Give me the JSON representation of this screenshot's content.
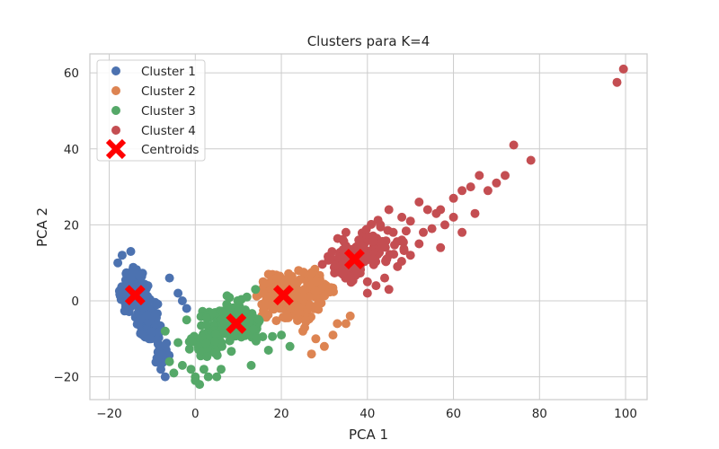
{
  "chart_data": {
    "type": "scatter",
    "title": "Clusters para K=4",
    "xlabel": "PCA 1",
    "ylabel": "PCA 2",
    "xlim": [
      -24.5,
      105
    ],
    "ylim": [
      -26,
      65
    ],
    "xticks": [
      -20,
      0,
      20,
      40,
      60,
      80,
      100
    ],
    "yticks": [
      -20,
      0,
      20,
      40,
      60
    ],
    "grid": true,
    "legend_position": "top-left",
    "series": [
      {
        "name": "Cluster 1",
        "color": "#4c72b0",
        "regions": [
          {
            "cx": -14,
            "cy": 2,
            "sx": 2.4,
            "sy": 3.5,
            "n": 160
          },
          {
            "cx": -11,
            "cy": -6,
            "sx": 2.0,
            "sy": 3.0,
            "n": 90
          },
          {
            "cx": -8,
            "cy": -13,
            "sx": 1.3,
            "sy": 2.6,
            "n": 30
          }
        ],
        "points": [
          [
            -18,
            10
          ],
          [
            -17,
            12
          ],
          [
            -15,
            13
          ],
          [
            -6,
            6
          ],
          [
            -4,
            2
          ],
          [
            -3,
            0
          ],
          [
            -2,
            -2
          ],
          [
            -8,
            -18
          ],
          [
            -7,
            -20
          ],
          [
            -11,
            4
          ],
          [
            -9,
            -1
          ]
        ]
      },
      {
        "name": "Cluster 2",
        "color": "#dd8452",
        "regions": [
          {
            "cx": 21,
            "cy": 1,
            "sx": 4.2,
            "sy": 3.6,
            "n": 230
          },
          {
            "cx": 28,
            "cy": 3,
            "sx": 3.0,
            "sy": 3.2,
            "n": 60
          }
        ],
        "points": [
          [
            25,
            -8
          ],
          [
            28,
            -10
          ],
          [
            30,
            -12
          ],
          [
            27,
            -14
          ],
          [
            33,
            -6
          ],
          [
            36,
            -4
          ],
          [
            35,
            -6
          ],
          [
            32,
            -9
          ],
          [
            17,
            7
          ],
          [
            19,
            6
          ],
          [
            24,
            8
          ]
        ]
      },
      {
        "name": "Cluster 3",
        "color": "#55a868",
        "regions": [
          {
            "cx": 9,
            "cy": -6,
            "sx": 4.0,
            "sy": 3.4,
            "n": 230
          },
          {
            "cx": 3,
            "cy": -11,
            "sx": 3.0,
            "sy": 2.6,
            "n": 70
          }
        ],
        "points": [
          [
            -6,
            -16
          ],
          [
            -5,
            -19
          ],
          [
            -3,
            -17
          ],
          [
            0,
            -21
          ],
          [
            1,
            -22
          ],
          [
            0,
            -20
          ],
          [
            -1,
            -18
          ],
          [
            3,
            -20
          ],
          [
            6,
            -18
          ],
          [
            13,
            -17
          ],
          [
            17,
            -13
          ],
          [
            20,
            -9
          ],
          [
            22,
            -12
          ],
          [
            -7,
            -8
          ],
          [
            -4,
            -11
          ],
          [
            -2,
            -5
          ],
          [
            14,
            3
          ],
          [
            12,
            1
          ],
          [
            2,
            -18
          ],
          [
            5,
            -20
          ]
        ]
      },
      {
        "name": "Cluster 4",
        "color": "#c44e52",
        "regions": [
          {
            "cx": 36,
            "cy": 10,
            "sx": 3.5,
            "sy": 3.4,
            "n": 110
          },
          {
            "cx": 42,
            "cy": 14,
            "sx": 4.0,
            "sy": 4.0,
            "n": 70
          }
        ],
        "points": [
          [
            45,
            24
          ],
          [
            48,
            22
          ],
          [
            50,
            21
          ],
          [
            52,
            26
          ],
          [
            54,
            24
          ],
          [
            56,
            23
          ],
          [
            58,
            20
          ],
          [
            60,
            27
          ],
          [
            62,
            29
          ],
          [
            64,
            30
          ],
          [
            66,
            33
          ],
          [
            68,
            29
          ],
          [
            70,
            31
          ],
          [
            72,
            33
          ],
          [
            74,
            41
          ],
          [
            78,
            37
          ],
          [
            55,
            19
          ],
          [
            57,
            14
          ],
          [
            60,
            22
          ],
          [
            62,
            18
          ],
          [
            65,
            23
          ],
          [
            53,
            18
          ],
          [
            50,
            12
          ],
          [
            47,
            9
          ],
          [
            44,
            6
          ],
          [
            42,
            4
          ],
          [
            40,
            2
          ],
          [
            48,
            16
          ],
          [
            46,
            18
          ],
          [
            43,
            20
          ],
          [
            98,
            57.5
          ],
          [
            99.5,
            61
          ],
          [
            38,
            16
          ],
          [
            35,
            18
          ],
          [
            40,
            5
          ],
          [
            45,
            3
          ],
          [
            52,
            15
          ],
          [
            57,
            24
          ]
        ]
      }
    ],
    "centroids": {
      "name": "Centroids",
      "color": "#ff0000",
      "points": [
        [
          -14,
          1.5
        ],
        [
          9.5,
          -6
        ],
        [
          20.5,
          1.5
        ],
        [
          37,
          11
        ]
      ]
    }
  }
}
